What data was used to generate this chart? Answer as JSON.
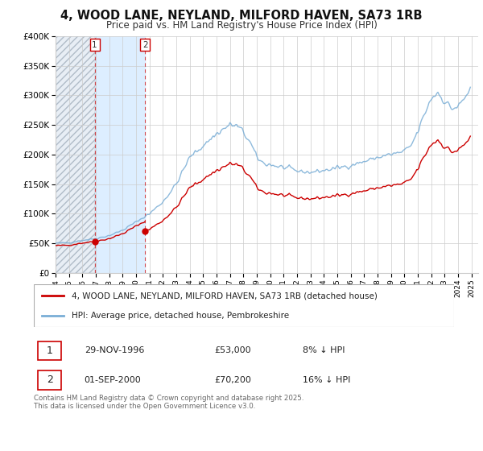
{
  "title": "4, WOOD LANE, NEYLAND, MILFORD HAVEN, SA73 1RB",
  "subtitle": "Price paid vs. HM Land Registry's House Price Index (HPI)",
  "red_label": "4, WOOD LANE, NEYLAND, MILFORD HAVEN, SA73 1RB (detached house)",
  "blue_label": "HPI: Average price, detached house, Pembrokeshire",
  "transaction1_date": "29-NOV-1996",
  "transaction1_price": "£53,000",
  "transaction1_hpi": "8% ↓ HPI",
  "transaction2_date": "01-SEP-2000",
  "transaction2_price": "£70,200",
  "transaction2_hpi": "16% ↓ HPI",
  "footer": "Contains HM Land Registry data © Crown copyright and database right 2025.\nThis data is licensed under the Open Government Licence v3.0.",
  "red_color": "#cc0000",
  "blue_color": "#7aaed6",
  "shade_color": "#ddeeff",
  "ylim_max": 400000,
  "background_color": "#ffffff",
  "t1_year": 1996.917,
  "t1_price": 53000,
  "t2_year": 2000.667,
  "t2_price": 70200
}
